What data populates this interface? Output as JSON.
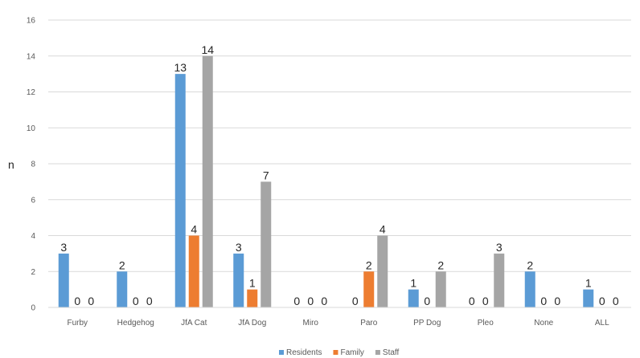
{
  "chart_data": {
    "type": "bar",
    "categories": [
      "Furby",
      "Hedgehog",
      "JfA Cat",
      "JfA Dog",
      "Miro",
      "Paro",
      "PP Dog",
      "Pleo",
      "None",
      "ALL"
    ],
    "series": [
      {
        "name": "Residents",
        "color": "#5b9bd5",
        "values": [
          3,
          2,
          13,
          3,
          0,
          0,
          1,
          0,
          2,
          1
        ]
      },
      {
        "name": "Family",
        "color": "#ed7d31",
        "values": [
          0,
          0,
          4,
          1,
          0,
          2,
          0,
          0,
          0,
          0
        ]
      },
      {
        "name": "Staff",
        "color": "#a5a5a5",
        "values": [
          0,
          0,
          14,
          7,
          0,
          4,
          2,
          3,
          0,
          0
        ]
      }
    ],
    "ylabel": "n",
    "ylim": [
      0,
      16
    ],
    "yticks": [
      0,
      2,
      4,
      6,
      8,
      10,
      12,
      14,
      16
    ],
    "grid": true,
    "legend": "bottom"
  }
}
